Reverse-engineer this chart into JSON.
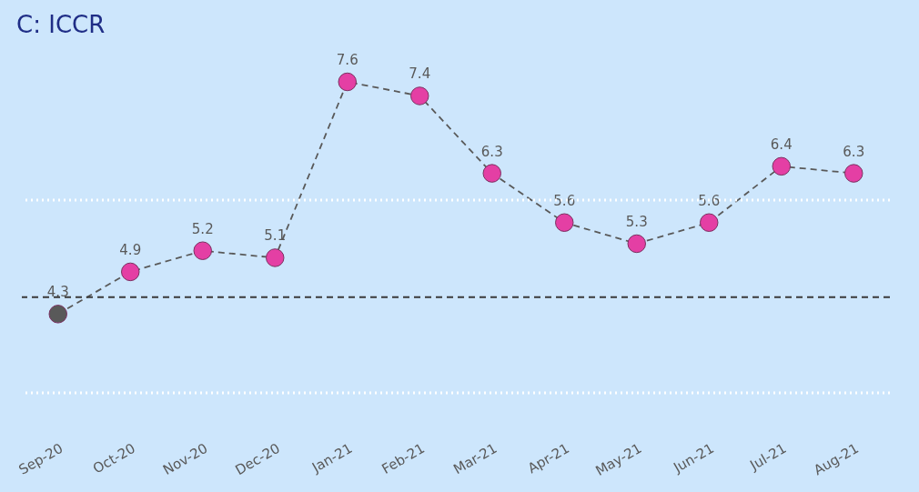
{
  "chart_data": {
    "type": "line",
    "title": "C: ICCR",
    "categories": [
      "Sep-20",
      "Oct-20",
      "Nov-20",
      "Dec-20",
      "Jan-21",
      "Feb-21",
      "Mar-21",
      "Apr-21",
      "May-21",
      "Jun-21",
      "Jul-21",
      "Aug-21"
    ],
    "series": [
      {
        "color": "#595959",
        "colors": [
          "#595959",
          "#e43fa4",
          "#e43fa4",
          "#e43fa4",
          "#e43fa4",
          "#e43fa4",
          "#e43fa4",
          "#e43fa4",
          "#e43fa4",
          "#e43fa4",
          "#e43fa4",
          "#e43fa4"
        ],
        "values": [
          4.3,
          4.9,
          5.2,
          5.1,
          7.6,
          7.4,
          6.3,
          5.6,
          5.3,
          5.6,
          6.4,
          6.3
        ]
      }
    ],
    "tick_labels": "x",
    "data_labels": true,
    "marker": "circle",
    "line_style": "dashed",
    "grid": false,
    "ref_lines": [
      {
        "axis": "y",
        "value": 4.54,
        "color": "#3a3a3a",
        "line_style": "dashed"
      },
      {
        "axis": "y",
        "value": 5.92,
        "color": "#ffffff",
        "line_style": "dotted"
      },
      {
        "axis": "y",
        "value": 3.18,
        "color": "#ffffff",
        "line_style": "dotted"
      }
    ]
  }
}
